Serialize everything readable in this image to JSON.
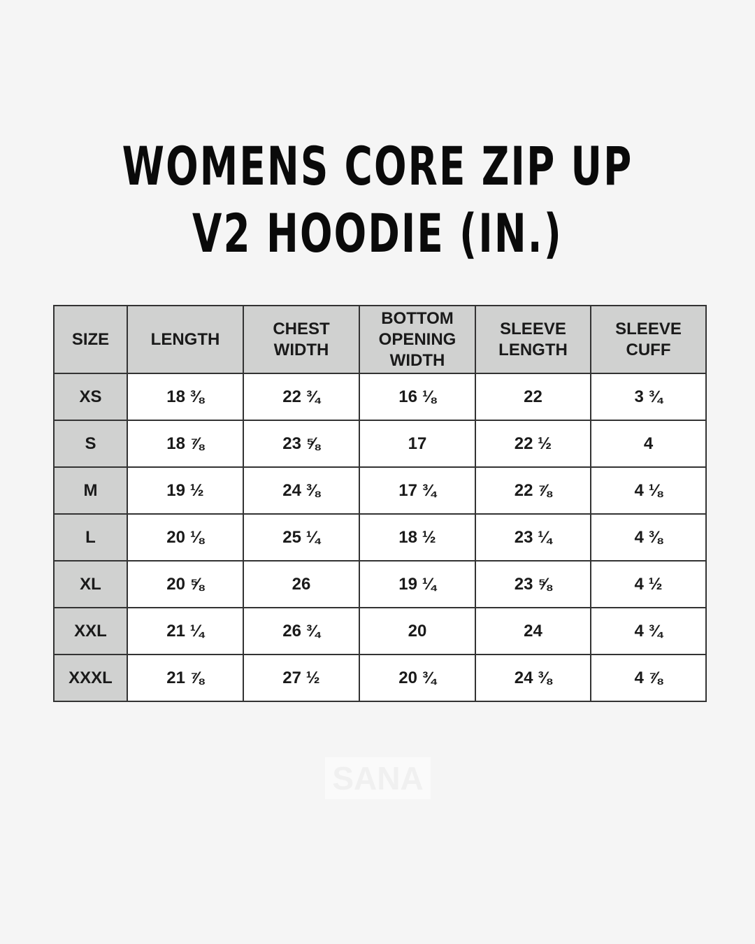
{
  "header": {
    "title_lines": [
      "WOMENS CORE ZIP UP",
      "V2 HOODIE (IN.)"
    ]
  },
  "table": {
    "columns": [
      [
        "SIZE"
      ],
      [
        "LENGTH"
      ],
      [
        "CHEST",
        "WIDTH"
      ],
      [
        "BOTTOM",
        "OPENING",
        "WIDTH"
      ],
      [
        "SLEEVE",
        "LENGTH"
      ],
      [
        "SLEEVE",
        "CUFF"
      ]
    ],
    "rows": [
      [
        "XS",
        "18 ⅜",
        "22 ¾",
        "16 ⅛",
        "22",
        "3 ¾"
      ],
      [
        "S",
        "18 ⅞",
        "23 ⅝",
        "17",
        "22 ½",
        "4"
      ],
      [
        "M",
        "19 ½",
        "24 ⅜",
        "17 ¾",
        "22 ⅞",
        "4 ⅛"
      ],
      [
        "L",
        "20 ⅛",
        "25 ¼",
        "18 ½",
        "23 ¼",
        "4 ⅜"
      ],
      [
        "XL",
        "20 ⅝",
        "26",
        "19 ¼",
        "23 ⅝",
        "4 ½"
      ],
      [
        "XXL",
        "21 ¼",
        "26 ¾",
        "20",
        "24",
        "4 ¾"
      ],
      [
        "XXXL",
        "21 ⅞",
        "27 ½",
        "20 ¾",
        "24 ⅜",
        "4 ⅞"
      ]
    ]
  },
  "watermark": "SANA"
}
